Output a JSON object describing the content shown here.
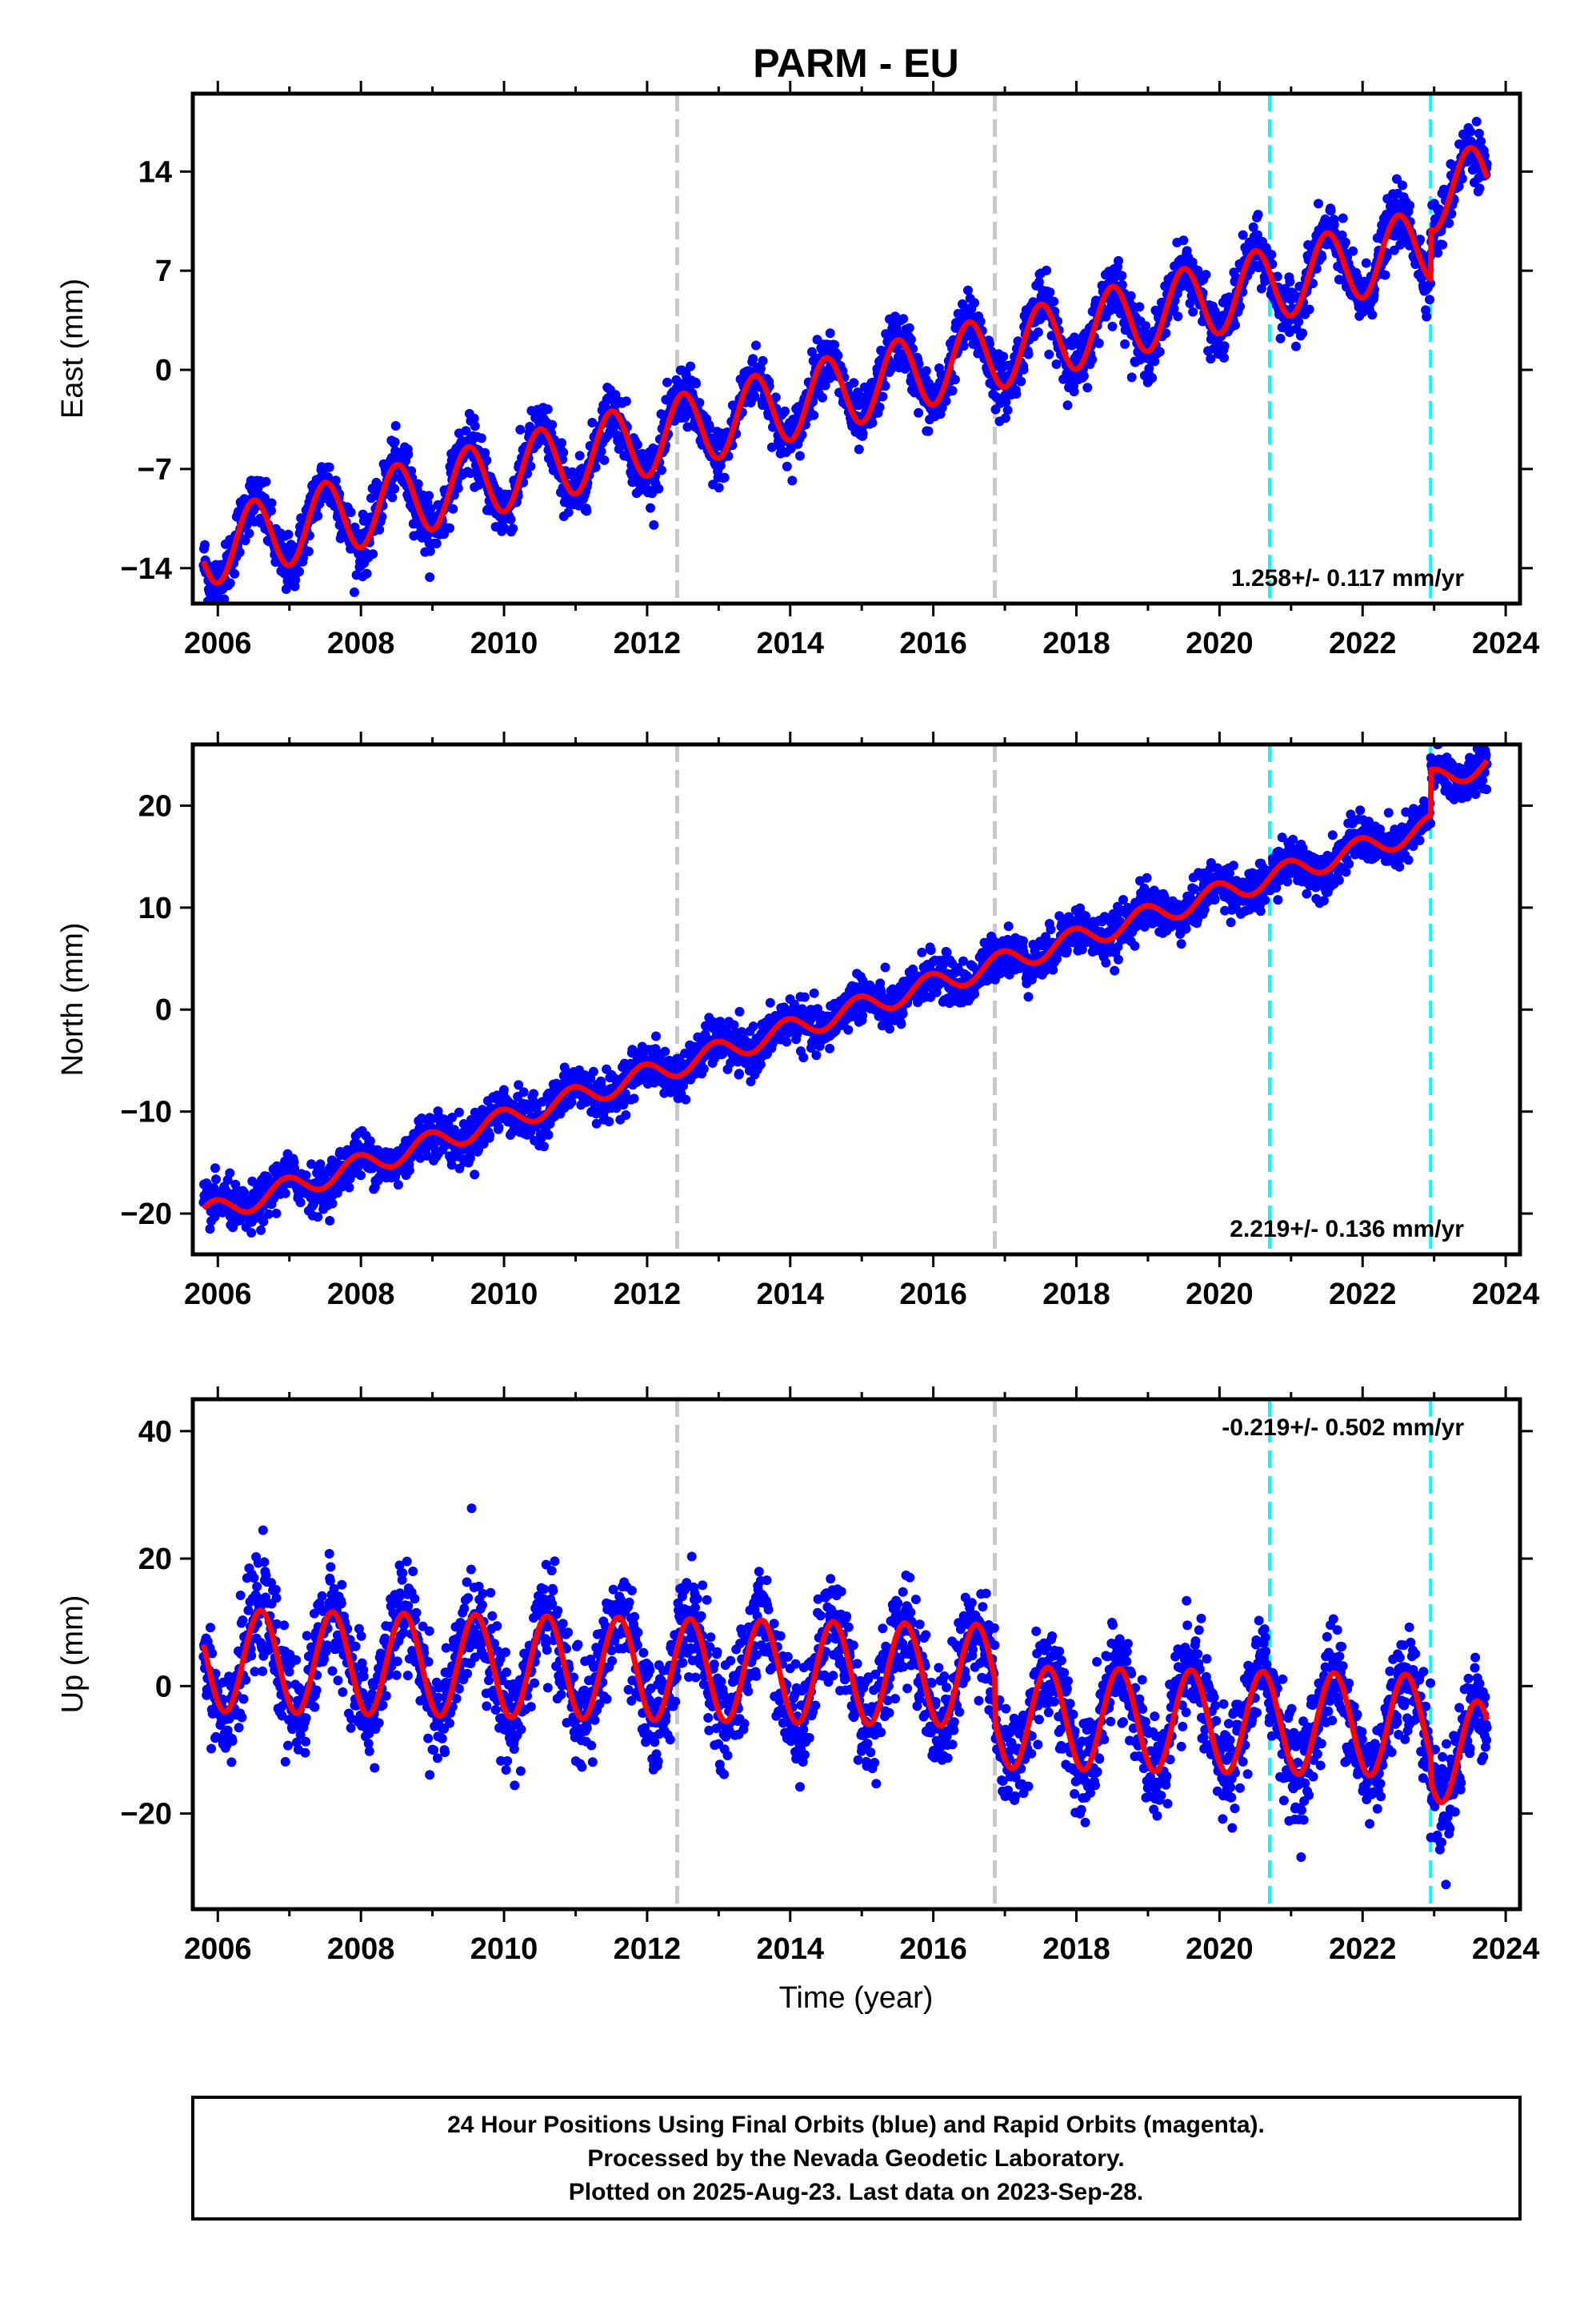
{
  "title": "PARM - EU",
  "footer": {
    "lines": [
      "24 Hour Positions Using Final Orbits (blue) and Rapid Orbits (magenta).",
      "Processed by the Nevada Geodetic Laboratory.",
      "Plotted on 2025-Aug-23. Last data on 2023-Sep-28."
    ]
  },
  "colors": {
    "data_points": "#0000ff",
    "model_fit": "#ff0000",
    "equipment_change": "#c8c8c8",
    "earthquake": "#00ffff",
    "frame": "#000000"
  },
  "chart_data": [
    {
      "type": "scatter",
      "component": "East",
      "ylabel": "East (mm)",
      "xlabel": "",
      "xlim": [
        2005.65,
        2024.2
      ],
      "ylim": [
        -16.5,
        19.5
      ],
      "xticks": [
        2006,
        2008,
        2010,
        2012,
        2014,
        2016,
        2018,
        2020,
        2022,
        2024
      ],
      "yticks": [
        -14,
        -7,
        0,
        7,
        14
      ],
      "ytick_labels": [
        "−14",
        "−7",
        "0",
        "7",
        "14"
      ],
      "rate_text": "1.258+/- 0.117 mm/yr",
      "model": {
        "t0": 2005.8,
        "t1": 2023.74,
        "offset": -13.5,
        "rate": 1.258,
        "seasonal_amplitude": 2.6,
        "seasonal_phase_peak": 0.5,
        "noise_sd": 1.0,
        "steps": [
          {
            "at": 2022.95,
            "size": 3.5
          }
        ]
      },
      "grey_dashed_lines": [
        2012.42,
        2016.86
      ],
      "cyan_dashed_lines": [
        2020.7,
        2022.95
      ]
    },
    {
      "type": "scatter",
      "component": "North",
      "ylabel": "North (mm)",
      "xlabel": "",
      "xlim": [
        2005.65,
        2024.2
      ],
      "ylim": [
        -24,
        26
      ],
      "xticks": [
        2006,
        2008,
        2010,
        2012,
        2014,
        2016,
        2018,
        2020,
        2022,
        2024
      ],
      "yticks": [
        -20,
        -10,
        0,
        10,
        20
      ],
      "ytick_labels": [
        "−20",
        "−10",
        "0",
        "10",
        "20"
      ],
      "rate_text": "2.219+/- 0.136 mm/yr",
      "model": {
        "t0": 2005.8,
        "t1": 2023.74,
        "offset": -19.5,
        "rate": 2.219,
        "seasonal_amplitude": 1.1,
        "seasonal_phase_peak": 0.95,
        "noise_sd": 1.1,
        "steps": [
          {
            "at": 2022.95,
            "size": 4.5
          }
        ]
      },
      "grey_dashed_lines": [
        2012.42,
        2016.86
      ],
      "cyan_dashed_lines": [
        2020.7,
        2022.95
      ]
    },
    {
      "type": "scatter",
      "component": "Up",
      "ylabel": "Up (mm)",
      "xlabel": "Time (year)",
      "xlim": [
        2005.65,
        2024.2
      ],
      "ylim": [
        -35,
        45
      ],
      "xticks": [
        2006,
        2008,
        2010,
        2012,
        2014,
        2016,
        2018,
        2020,
        2022,
        2024
      ],
      "yticks": [
        -20,
        0,
        20,
        40
      ],
      "ytick_labels": [
        "−20",
        "0",
        "20",
        "40"
      ],
      "rate_text": "-0.219+/- 0.502 mm/yr",
      "model": {
        "t0": 2005.8,
        "t1": 2023.74,
        "offset": 6.5,
        "rate": -0.219,
        "seasonal_amplitude": 8.0,
        "seasonal_phase_peak": 0.6,
        "noise_sd": 4.0,
        "steps": [
          {
            "at": 2016.86,
            "size": -6.5
          },
          {
            "at": 2022.95,
            "size": -4.0
          }
        ]
      },
      "grey_dashed_lines": [
        2012.42,
        2016.86
      ],
      "cyan_dashed_lines": [
        2020.7,
        2022.95
      ]
    }
  ]
}
